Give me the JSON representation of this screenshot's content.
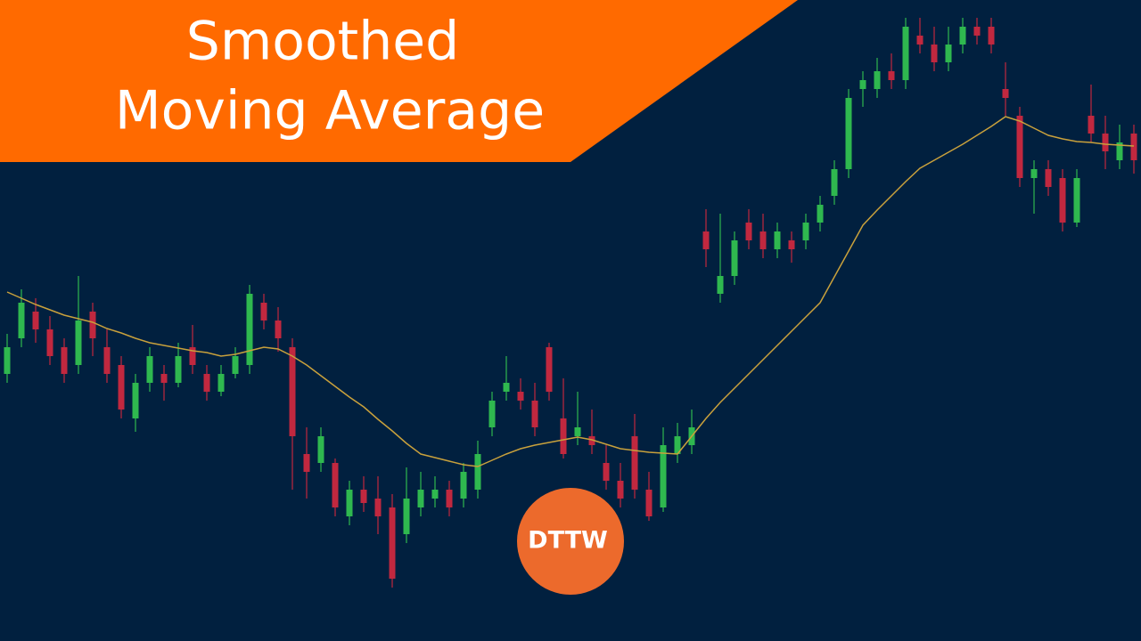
{
  "chart_data": {
    "type": "candlestick",
    "title_lines": [
      "Smoothed",
      "Moving Average"
    ],
    "logo": "DTTW",
    "background": "#01203f",
    "banner_color": "#ff6a00",
    "logo_color": "#ec6a2c",
    "up_color": "#2fb84f",
    "down_color": "#c1283f",
    "ylim": [
      0,
      720
    ],
    "open": [
      300,
      340,
      370,
      350,
      330,
      310,
      370,
      330,
      310,
      250,
      290,
      300,
      290,
      330,
      300,
      280,
      300,
      310,
      380,
      360,
      330,
      210,
      200,
      200,
      140,
      170,
      160,
      150,
      120,
      150,
      160,
      170,
      160,
      170,
      240,
      280,
      280,
      270,
      330,
      250,
      230,
      230,
      200,
      180,
      230,
      170,
      150,
      210,
      220,
      460,
      390,
      410,
      470,
      460,
      440,
      450,
      450,
      470,
      500,
      530,
      620,
      620,
      640,
      630,
      680,
      670,
      650,
      670,
      690,
      690,
      620,
      590,
      520,
      530,
      520,
      470,
      590,
      570,
      540,
      570
    ],
    "high": [
      345,
      395,
      385,
      365,
      340,
      410,
      380,
      350,
      320,
      300,
      330,
      310,
      335,
      355,
      310,
      310,
      330,
      400,
      390,
      375,
      340,
      240,
      240,
      205,
      180,
      185,
      185,
      165,
      195,
      190,
      185,
      180,
      200,
      225,
      280,
      320,
      295,
      290,
      335,
      295,
      280,
      260,
      220,
      200,
      255,
      190,
      240,
      245,
      260,
      485,
      480,
      460,
      485,
      480,
      470,
      460,
      480,
      500,
      540,
      620,
      640,
      655,
      660,
      700,
      700,
      690,
      690,
      700,
      700,
      700,
      650,
      600,
      540,
      540,
      530,
      530,
      625,
      590,
      580,
      580
    ],
    "low": [
      290,
      330,
      335,
      310,
      290,
      300,
      320,
      290,
      250,
      235,
      280,
      270,
      285,
      300,
      270,
      275,
      295,
      300,
      350,
      325,
      170,
      160,
      190,
      140,
      130,
      145,
      120,
      60,
      110,
      140,
      150,
      140,
      150,
      160,
      230,
      270,
      260,
      230,
      270,
      205,
      220,
      210,
      170,
      150,
      160,
      135,
      145,
      200,
      210,
      420,
      380,
      400,
      440,
      430,
      430,
      425,
      440,
      460,
      490,
      520,
      600,
      610,
      620,
      620,
      660,
      640,
      640,
      660,
      670,
      660,
      590,
      510,
      480,
      500,
      460,
      465,
      560,
      530,
      530,
      525
    ],
    "close": [
      330,
      380,
      350,
      320,
      300,
      360,
      340,
      300,
      260,
      290,
      320,
      290,
      320,
      310,
      280,
      300,
      320,
      390,
      360,
      340,
      230,
      190,
      230,
      150,
      170,
      155,
      140,
      70,
      160,
      170,
      170,
      150,
      190,
      210,
      270,
      290,
      270,
      240,
      280,
      210,
      240,
      220,
      180,
      160,
      170,
      140,
      220,
      230,
      240,
      440,
      410,
      450,
      450,
      440,
      460,
      440,
      470,
      490,
      530,
      610,
      630,
      640,
      630,
      690,
      670,
      650,
      670,
      690,
      680,
      670,
      610,
      520,
      530,
      510,
      470,
      520,
      570,
      550,
      560,
      540
    ],
    "ma": {
      "color": "#c9a13c",
      "values": [
        392,
        385,
        378,
        372,
        366,
        362,
        358,
        351,
        346,
        340,
        335,
        332,
        329,
        326,
        324,
        320,
        322,
        326,
        330,
        328,
        320,
        310,
        298,
        286,
        274,
        263,
        249,
        236,
        222,
        210,
        206,
        202,
        198,
        196,
        203,
        210,
        216,
        220,
        223,
        226,
        229,
        226,
        221,
        216,
        214,
        212,
        211,
        210,
        230,
        250,
        268,
        284,
        300,
        316,
        332,
        348,
        364,
        380,
        409,
        438,
        467,
        484,
        500,
        516,
        531,
        540,
        549,
        558,
        568,
        578,
        589,
        584,
        576,
        568,
        564,
        561,
        560,
        558,
        557,
        556
      ]
    }
  }
}
